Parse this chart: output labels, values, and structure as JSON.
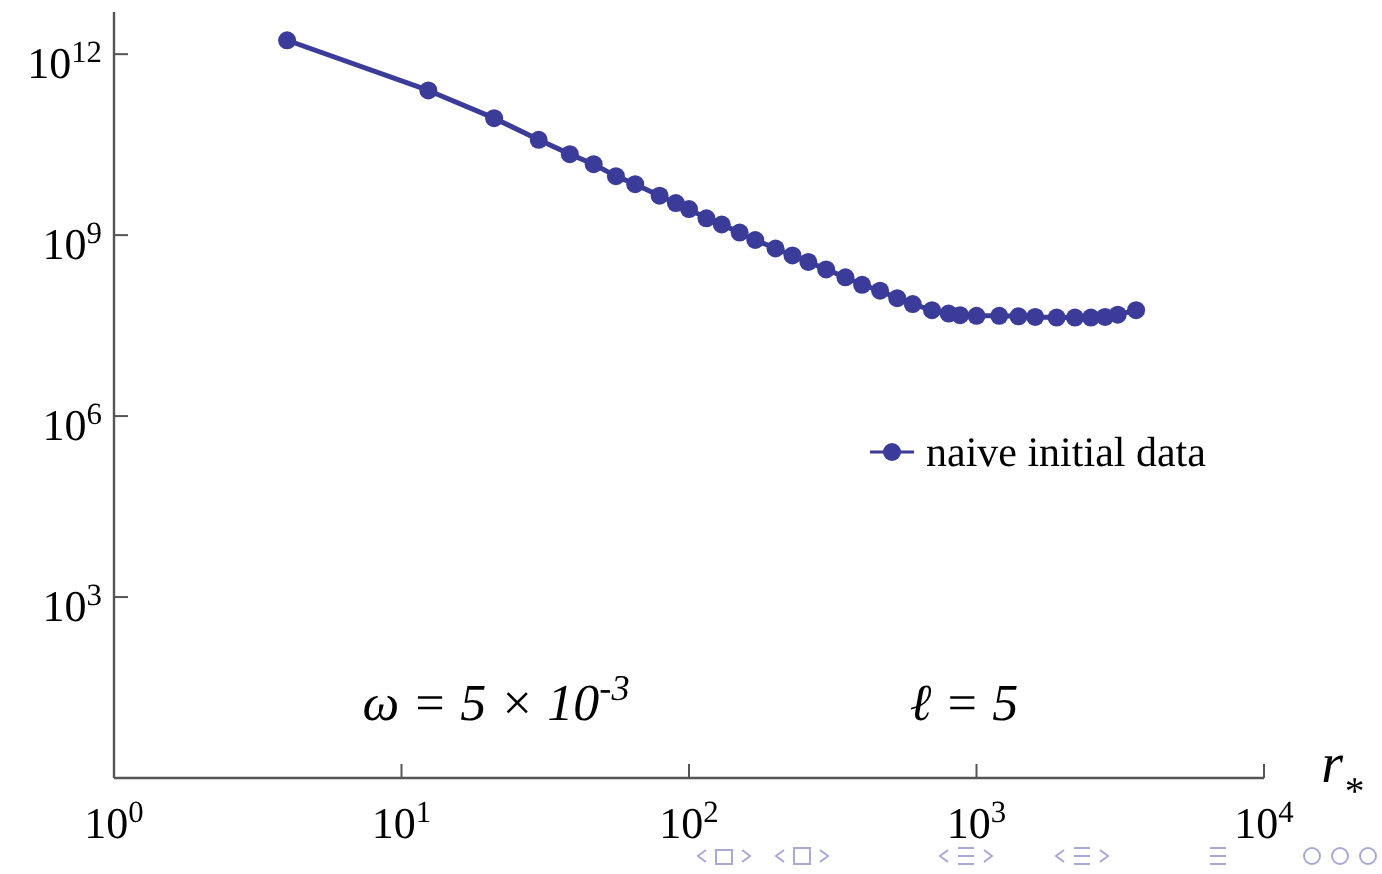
{
  "chart_data": {
    "type": "line",
    "xlabel": "r$_{*}$",
    "log": "xy",
    "xlim": [
      1,
      10000
    ],
    "ylim": [
      1,
      5000000000000.0
    ],
    "xticks": [
      {
        "value": 1,
        "label": "10$^{0}$"
      },
      {
        "value": 10,
        "label": "10$^{1}$"
      },
      {
        "value": 100,
        "label": "10$^{2}$"
      },
      {
        "value": 1000,
        "label": "10$^{3}$"
      },
      {
        "value": 10000,
        "label": "10$^{4}$"
      }
    ],
    "yticks": [
      {
        "value": 1000,
        "label": "10$^{3}$"
      },
      {
        "value": 1000000,
        "label": "10$^{6}$"
      },
      {
        "value": 1000000000,
        "label": "10$^{9}$"
      },
      {
        "value": 1000000000000,
        "label": "10$^{12}$"
      }
    ],
    "grid": false,
    "legend": "right",
    "marker": "circle",
    "line_style": "solid",
    "annotations": [
      "ω = 5 × 10$^{-3}$",
      "ℓ = 5"
    ],
    "series": [
      {
        "name": "naive initial data",
        "color": "#3b3b9a",
        "x": [
          4.0,
          12.4,
          21,
          30,
          38.5,
          46.6,
          55.7,
          65,
          79,
          90,
          100,
          115,
          130,
          150,
          170,
          200,
          229,
          260,
          300,
          350,
          400,
          462,
          530,
          600,
          700,
          800,
          877,
          1000,
          1200,
          1400,
          1600,
          1900,
          2200,
          2500,
          2800,
          3100,
          3590
        ],
        "values": [
          1700000000000.0,
          250000000000.0,
          87000000000.0,
          38000000000.0,
          22000000000.0,
          15000000000.0,
          9500000000.0,
          7000000000.0,
          4500000000.0,
          3400000000.0,
          2700000000.0,
          1900000000.0,
          1500000000.0,
          1100000000.0,
          830000000.0,
          600000000.0,
          460000000.0,
          360000000.0,
          270000000.0,
          200000000.0,
          150000000.0,
          120000000.0,
          90000000.0,
          72000000.0,
          57000000.0,
          50000000.0,
          47000000.0,
          46000000.0,
          46000000.0,
          45000000.0,
          44000000.0,
          43000000.0,
          43000000.0,
          43000000.0,
          44000000.0,
          48000000.0,
          57000000.0
        ]
      }
    ]
  }
}
